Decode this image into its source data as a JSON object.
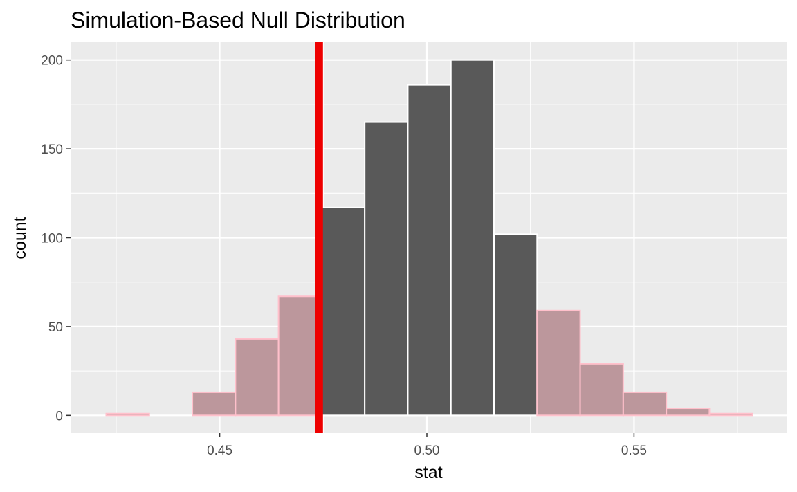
{
  "chart_data": {
    "type": "bar",
    "title": "Simulation-Based Null Distribution",
    "xlabel": "stat",
    "ylabel": "count",
    "xlim": [
      0.414,
      0.587
    ],
    "ylim": [
      -10,
      210
    ],
    "x_ticks": [
      0.45,
      0.5,
      0.55
    ],
    "x_tick_labels": [
      "0.45",
      "0.50",
      "0.55"
    ],
    "y_ticks": [
      0,
      50,
      100,
      150,
      200
    ],
    "y_tick_labels": [
      "0",
      "50",
      "100",
      "150",
      "200"
    ],
    "grid": true,
    "bin_width": 0.0104,
    "bins": [
      {
        "center": 0.4278,
        "count": 1,
        "shaded": true
      },
      {
        "center": 0.4382,
        "count": 0,
        "shaded": true
      },
      {
        "center": 0.4486,
        "count": 13,
        "shaded": true
      },
      {
        "center": 0.459,
        "count": 43,
        "shaded": true
      },
      {
        "center": 0.4694,
        "count": 67,
        "shaded": true
      },
      {
        "center": 0.4798,
        "count": 117,
        "shaded": false
      },
      {
        "center": 0.4902,
        "count": 165,
        "shaded": false
      },
      {
        "center": 0.5006,
        "count": 186,
        "shaded": false
      },
      {
        "center": 0.511,
        "count": 200,
        "shaded": false
      },
      {
        "center": 0.5214,
        "count": 102,
        "shaded": false
      },
      {
        "center": 0.5318,
        "count": 59,
        "shaded": true
      },
      {
        "center": 0.5422,
        "count": 29,
        "shaded": true
      },
      {
        "center": 0.5526,
        "count": 13,
        "shaded": true
      },
      {
        "center": 0.563,
        "count": 4,
        "shaded": true
      },
      {
        "center": 0.5734,
        "count": 1,
        "shaded": true
      }
    ],
    "observed_stat": 0.474,
    "colors": {
      "panel_background": "#ebebeb",
      "grid": "#ffffff",
      "bar_fill": "#595959",
      "bar_border": "#ffffff",
      "shade_fill": "#bc979c",
      "shade_border": "#ffc0cb",
      "observed_line": "#ee0000"
    }
  }
}
